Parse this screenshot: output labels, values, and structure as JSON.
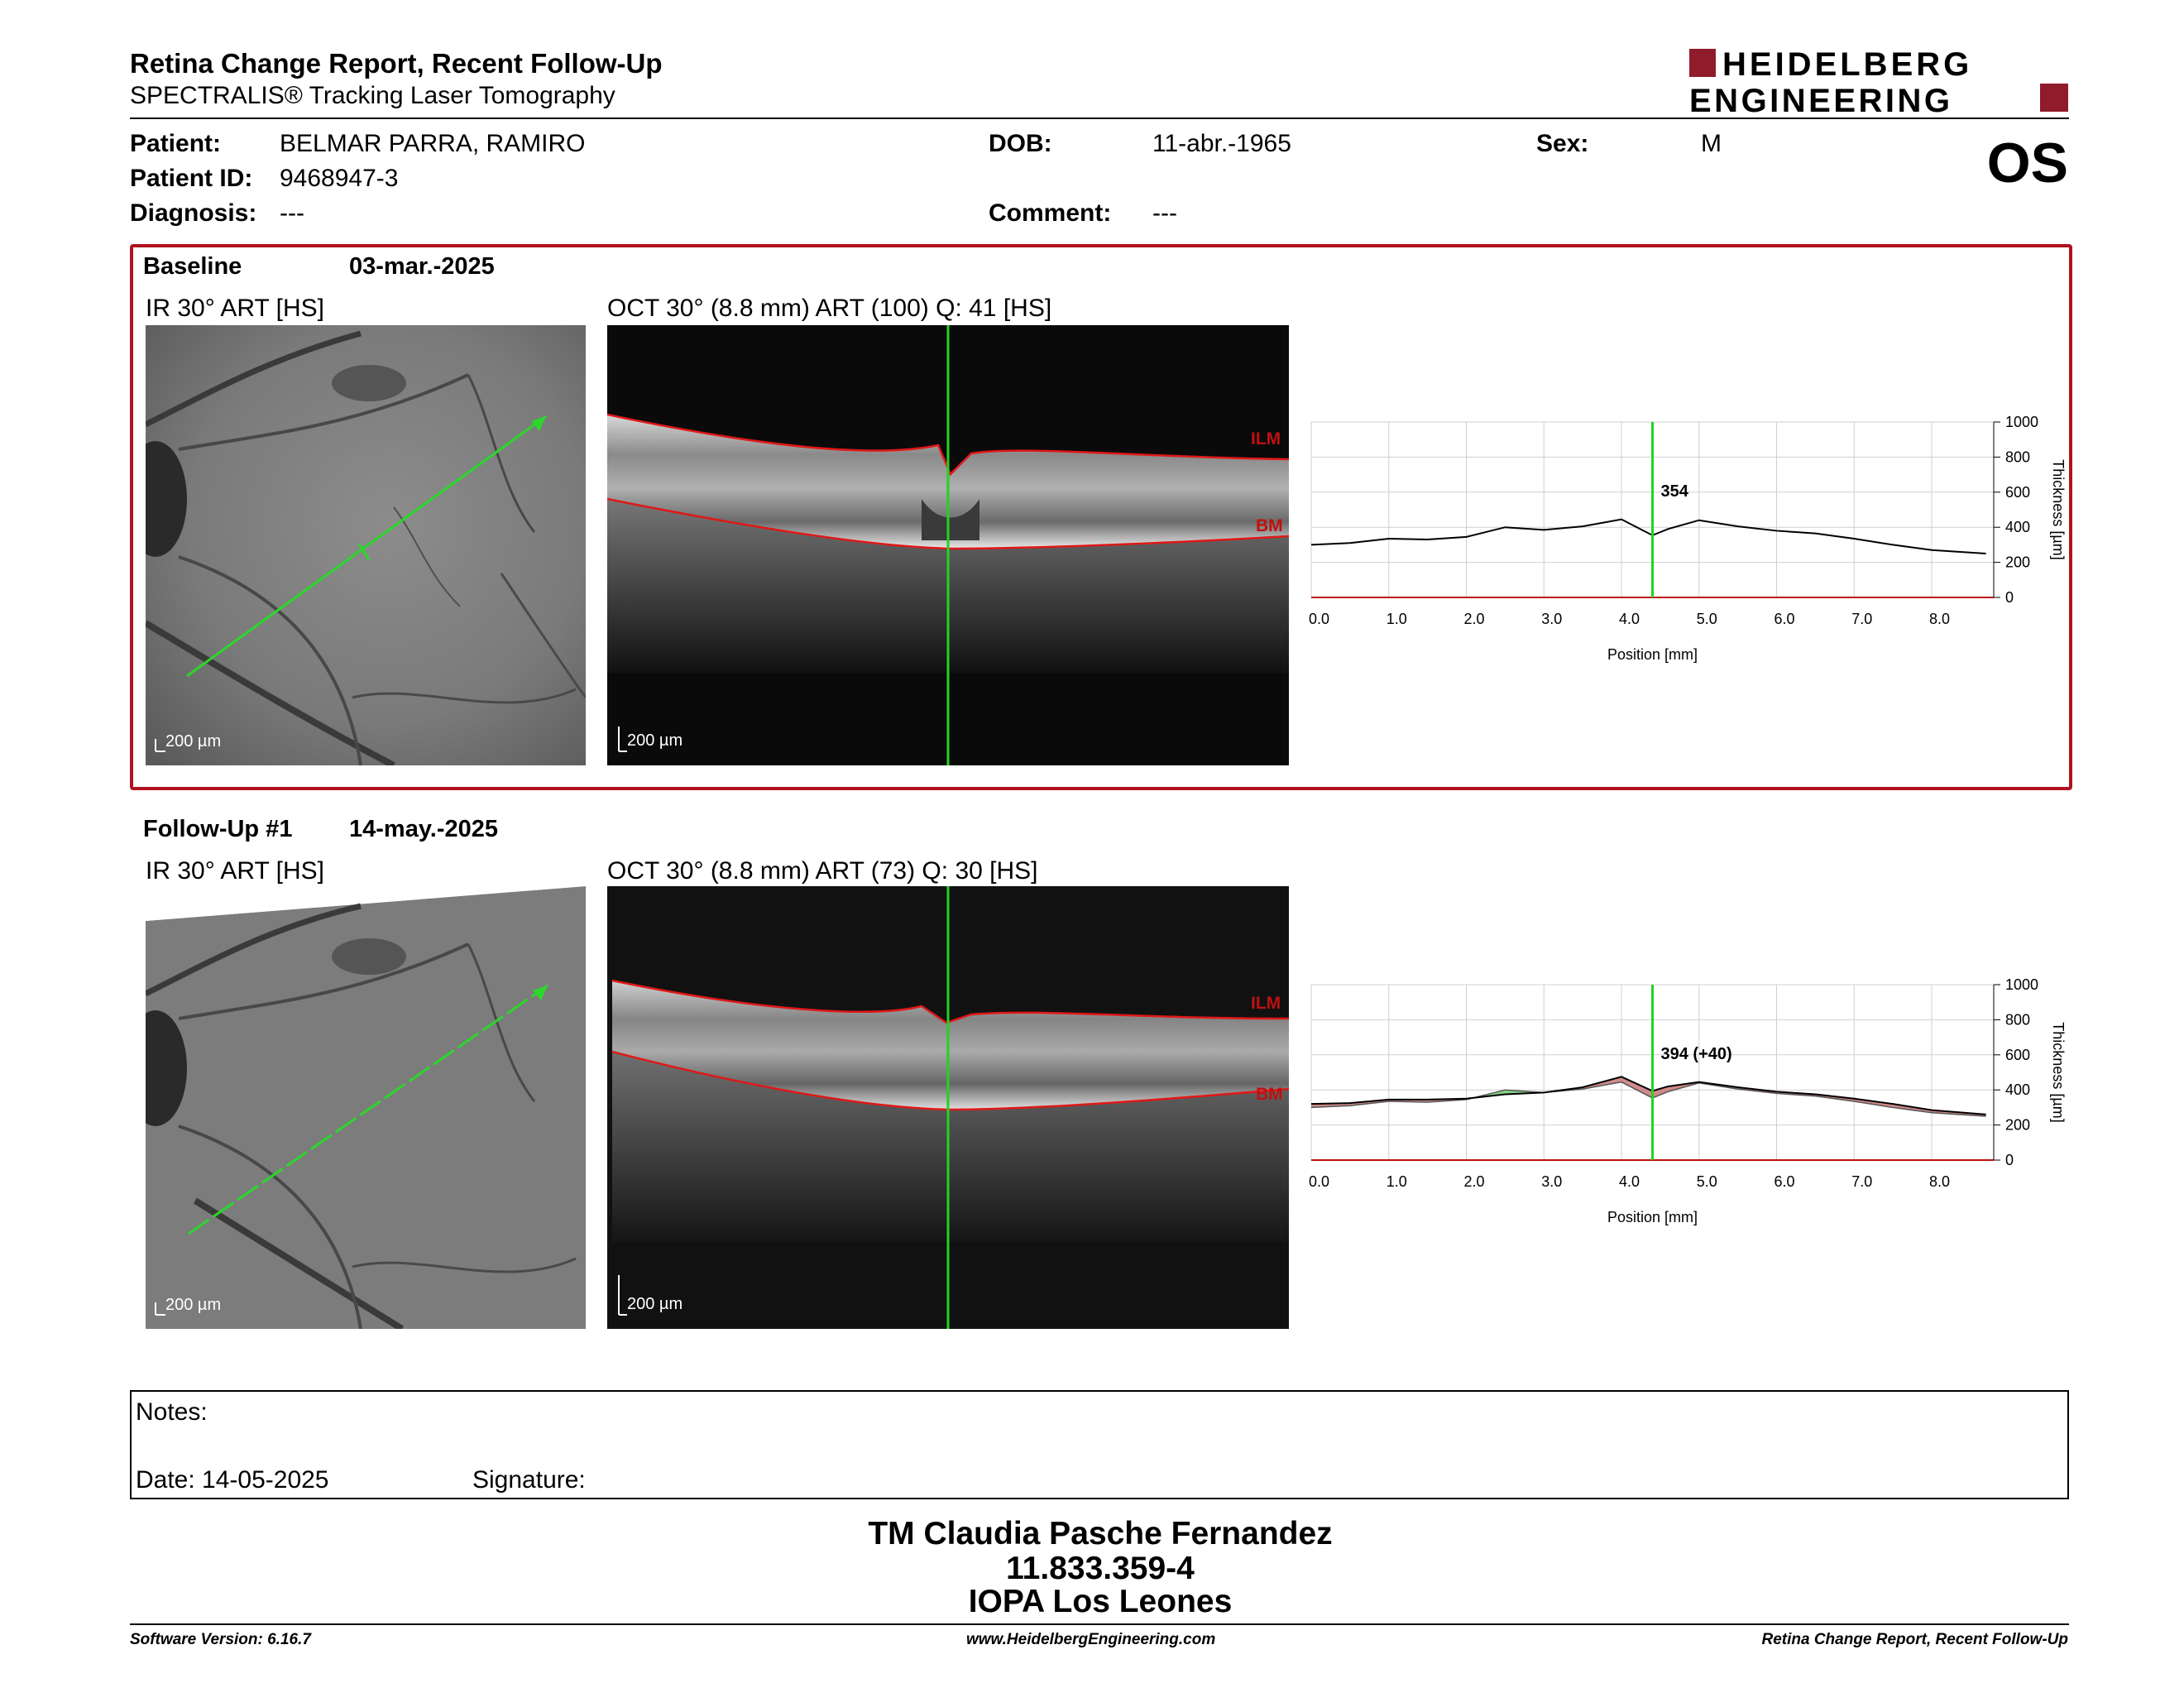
{
  "header": {
    "title": "Retina Change Report, Recent Follow-Up",
    "subtitle": "SPECTRALIS® Tracking Laser Tomography",
    "logo_line1": "HEIDELBERG",
    "logo_line2": "ENGINEERING",
    "eye": "OS"
  },
  "patient": {
    "name_label": "Patient:",
    "name": "BELMAR PARRA, RAMIRO",
    "id_label": "Patient ID:",
    "id": "9468947-3",
    "diagnosis_label": "Diagnosis:",
    "diagnosis": "---",
    "dob_label": "DOB:",
    "dob": "11-abr.-1965",
    "comment_label": "Comment:",
    "comment": "---",
    "sex_label": "Sex:",
    "sex": "M"
  },
  "baseline": {
    "label": "Baseline",
    "date": "03-mar.-2025",
    "ir_label": "IR 30° ART [HS]",
    "oct_label": "OCT 30° (8.8 mm) ART (100) Q: 41 [HS]",
    "scale_text": "200 µm",
    "ilm_tag": "ILM",
    "bm_tag": "BM"
  },
  "followup": {
    "label": "Follow-Up #1",
    "date": "14-may.-2025",
    "ir_label": "IR 30° ART [HS]",
    "oct_label": "OCT 30° (8.8 mm) ART (73) Q: 30 [HS]",
    "scale_text": "200 µm",
    "ilm_tag": "ILM",
    "bm_tag": "BM"
  },
  "chart_data": [
    {
      "type": "line",
      "xlabel": "Position [mm]",
      "ylabel": "Thickness [µm]",
      "xlim": [
        0,
        8.8
      ],
      "ylim": [
        0,
        1000
      ],
      "x_ticks": [
        "0.0",
        "1.0",
        "2.0",
        "3.0",
        "4.0",
        "5.0",
        "6.0",
        "7.0",
        "8.0"
      ],
      "y_ticks": [
        "0",
        "200",
        "400",
        "600",
        "800",
        "1000"
      ],
      "cursor_x": 4.4,
      "cursor_label": "354",
      "series": [
        {
          "x": [
            0,
            0.5,
            1.0,
            1.5,
            2.0,
            2.5,
            3.0,
            3.5,
            4.0,
            4.4,
            4.6,
            5.0,
            5.5,
            6.0,
            6.5,
            7.0,
            7.5,
            8.0,
            8.7
          ],
          "y": [
            300,
            310,
            335,
            330,
            345,
            400,
            385,
            405,
            445,
            354,
            390,
            440,
            405,
            380,
            365,
            335,
            300,
            270,
            250
          ]
        }
      ]
    },
    {
      "type": "area",
      "xlabel": "Position [mm]",
      "ylabel": "Thickness [µm]",
      "xlim": [
        0,
        8.8
      ],
      "ylim": [
        0,
        1000
      ],
      "x_ticks": [
        "0.0",
        "1.0",
        "2.0",
        "3.0",
        "4.0",
        "5.0",
        "6.0",
        "7.0",
        "8.0"
      ],
      "y_ticks": [
        "0",
        "200",
        "400",
        "600",
        "800",
        "1000"
      ],
      "cursor_x": 4.4,
      "cursor_label": "394 (+40)",
      "series": [
        {
          "x": [
            0,
            0.5,
            1.0,
            1.5,
            2.0,
            2.5,
            3.0,
            3.5,
            4.0,
            4.4,
            4.6,
            5.0,
            5.5,
            6.0,
            6.5,
            7.0,
            7.5,
            8.0,
            8.7
          ],
          "y": [
            320,
            325,
            345,
            345,
            350,
            375,
            385,
            415,
            475,
            394,
            420,
            445,
            415,
            390,
            375,
            350,
            320,
            285,
            260
          ]
        },
        {
          "x": [
            0,
            0.5,
            1.0,
            1.5,
            2.0,
            2.5,
            3.0,
            3.5,
            4.0,
            4.4,
            4.6,
            5.0,
            5.5,
            6.0,
            6.5,
            7.0,
            7.5,
            8.0,
            8.7
          ],
          "y": [
            300,
            310,
            335,
            330,
            345,
            400,
            385,
            405,
            445,
            354,
            390,
            440,
            405,
            380,
            365,
            335,
            300,
            270,
            250
          ]
        }
      ]
    }
  ],
  "notes": {
    "label": "Notes:",
    "date_label": "Date: 14-05-2025",
    "signature_label": "Signature:"
  },
  "signature_block": {
    "line1": "TM Claudia Pasche Fernandez",
    "line2": "11.833.359-4",
    "line3": "IOPA Los Leones"
  },
  "footer": {
    "left": "Software Version: 6.16.7",
    "center": "www.HeidelbergEngineering.com",
    "right": "Retina Change Report, Recent Follow-Up"
  }
}
